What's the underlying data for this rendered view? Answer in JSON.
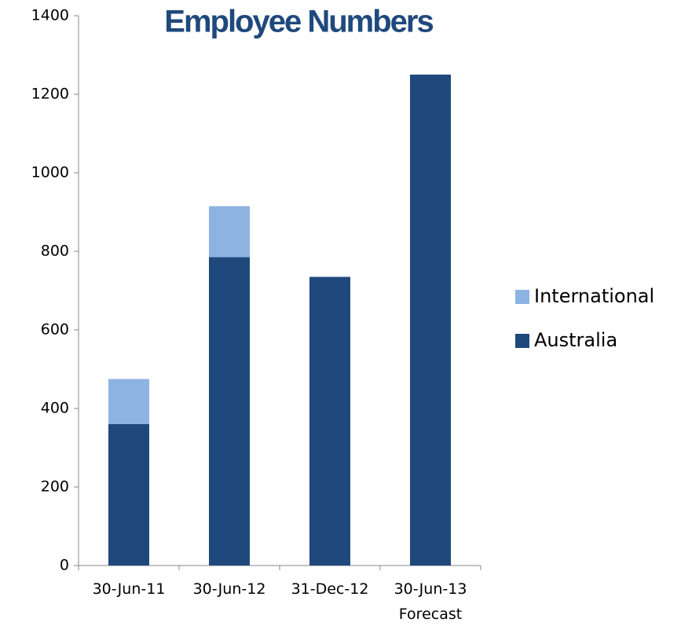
{
  "chart_data": {
    "type": "stacked_bar",
    "title": "Employee Numbers",
    "categories": [
      "30-Jun-11",
      "30-Jun-12",
      "31-Dec-12",
      "30-Jun-13\nForecast"
    ],
    "series": [
      {
        "name": "Australia",
        "color": "#1f497d",
        "values": [
          360,
          785,
          735,
          1250
        ]
      },
      {
        "name": "International",
        "color": "#8db3e2",
        "values": [
          115,
          130,
          0,
          0
        ]
      }
    ],
    "ylim": [
      0,
      1400
    ],
    "yticks": [
      0,
      200,
      400,
      600,
      800,
      1000,
      1200,
      1400
    ],
    "grid": false,
    "legend": "right"
  }
}
